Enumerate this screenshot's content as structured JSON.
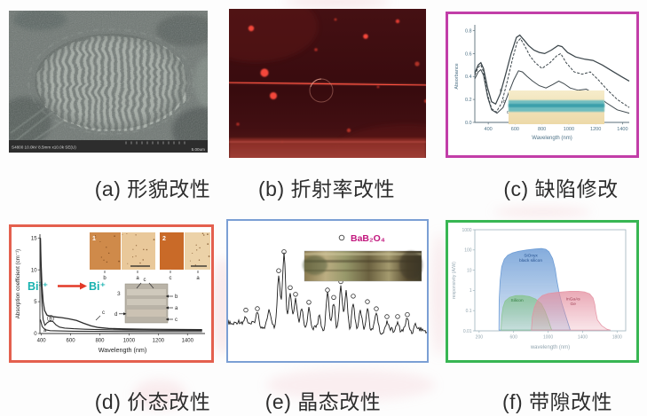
{
  "page": {
    "background": "#fdfdfd"
  },
  "figure": {
    "captions": {
      "a": "(a) 形貌改性",
      "b": "(b) 折射率改性",
      "c": "(c) 缺陷修改",
      "d": "(d) 价态改性",
      "e": "(e) 晶态改性",
      "f": "(f) 带隙改性"
    }
  },
  "panel_a": {
    "status_left": "S4800 10.0kV 8.5mm x10.0k SE(U)",
    "status_right": "5.00um"
  },
  "panel_d": {
    "annotation_from": "Bi³⁺",
    "annotation_to": "Bi⁺",
    "annotation_color": "#18b2b0",
    "arrow_color": "#e23a28",
    "inset1_label": "1",
    "inset2_label": "2",
    "inset3_label": "3",
    "inset1_sub": [
      "b",
      "a"
    ],
    "inset2_sub": [
      "c",
      "a"
    ],
    "inset3_top": "c",
    "inset3_left": "d",
    "inset3_right": [
      "b",
      "a",
      "c"
    ],
    "curve_labels": [
      "a",
      "b",
      "c"
    ]
  },
  "panel_e": {
    "legend_marker": "○",
    "legend_label": "BaB₂O₄",
    "legend_color": "#c2187e"
  },
  "borders": {
    "c": "#c23ea8",
    "d": "#e4604e",
    "e": "#7b9fd4",
    "f": "#38b653"
  },
  "chart_data": [
    {
      "panel": "c",
      "type": "line",
      "xlabel": "Wavelength (nm)",
      "ylabel": "Absorbance",
      "x_range": [
        300,
        1450
      ],
      "y_range": [
        0,
        0.85
      ],
      "x_ticks": [
        400,
        600,
        800,
        1000,
        1200,
        1400
      ],
      "y_ticks": [
        0,
        0.2,
        0.4,
        0.6,
        0.8
      ],
      "curve_labels": [
        "a",
        "b",
        "c"
      ],
      "series": [
        {
          "name": "a",
          "points": [
            [
              300,
              0.43
            ],
            [
              325,
              0.5
            ],
            [
              345,
              0.52
            ],
            [
              365,
              0.47
            ],
            [
              395,
              0.3
            ],
            [
              425,
              0.18
            ],
            [
              455,
              0.16
            ],
            [
              490,
              0.25
            ],
            [
              530,
              0.42
            ],
            [
              570,
              0.6
            ],
            [
              610,
              0.74
            ],
            [
              635,
              0.76
            ],
            [
              665,
              0.72
            ],
            [
              700,
              0.67
            ],
            [
              740,
              0.63
            ],
            [
              780,
              0.61
            ],
            [
              820,
              0.6
            ],
            [
              870,
              0.63
            ],
            [
              920,
              0.67
            ],
            [
              950,
              0.66
            ],
            [
              990,
              0.61
            ],
            [
              1050,
              0.57
            ],
            [
              1120,
              0.55
            ],
            [
              1180,
              0.54
            ],
            [
              1250,
              0.5
            ],
            [
              1320,
              0.45
            ],
            [
              1390,
              0.4
            ],
            [
              1450,
              0.36
            ]
          ]
        },
        {
          "name": "b",
          "dash": "3,1.6",
          "points": [
            [
              300,
              0.41
            ],
            [
              325,
              0.48
            ],
            [
              345,
              0.5
            ],
            [
              365,
              0.44
            ],
            [
              395,
              0.24
            ],
            [
              425,
              0.12
            ],
            [
              460,
              0.09
            ],
            [
              500,
              0.17
            ],
            [
              540,
              0.35
            ],
            [
              580,
              0.55
            ],
            [
              615,
              0.7
            ],
            [
              640,
              0.73
            ],
            [
              670,
              0.67
            ],
            [
              710,
              0.58
            ],
            [
              750,
              0.52
            ],
            [
              800,
              0.47
            ],
            [
              860,
              0.52
            ],
            [
              910,
              0.58
            ],
            [
              940,
              0.6
            ],
            [
              980,
              0.52
            ],
            [
              1040,
              0.44
            ],
            [
              1100,
              0.42
            ],
            [
              1160,
              0.44
            ],
            [
              1220,
              0.37
            ],
            [
              1290,
              0.28
            ],
            [
              1360,
              0.2
            ],
            [
              1450,
              0.13
            ]
          ]
        },
        {
          "name": "c",
          "points": [
            [
              300,
              0.38
            ],
            [
              325,
              0.44
            ],
            [
              345,
              0.46
            ],
            [
              365,
              0.41
            ],
            [
              395,
              0.22
            ],
            [
              425,
              0.11
            ],
            [
              465,
              0.08
            ],
            [
              510,
              0.13
            ],
            [
              550,
              0.25
            ],
            [
              590,
              0.37
            ],
            [
              625,
              0.45
            ],
            [
              655,
              0.44
            ],
            [
              690,
              0.4
            ],
            [
              730,
              0.36
            ],
            [
              780,
              0.32
            ],
            [
              830,
              0.3
            ],
            [
              880,
              0.33
            ],
            [
              925,
              0.36
            ],
            [
              960,
              0.34
            ],
            [
              1010,
              0.3
            ],
            [
              1070,
              0.28
            ],
            [
              1130,
              0.29
            ],
            [
              1200,
              0.24
            ],
            [
              1280,
              0.17
            ],
            [
              1360,
              0.11
            ],
            [
              1450,
              0.08
            ]
          ]
        }
      ]
    },
    {
      "panel": "d",
      "type": "line",
      "xlabel": "Wavelength (nm)",
      "ylabel": "Absorption coefficient (cm⁻¹)",
      "x_range": [
        390,
        1520
      ],
      "y_range": [
        0,
        15.6
      ],
      "x_ticks": [
        400,
        600,
        800,
        1000,
        1200,
        1400
      ],
      "y_ticks": [
        0,
        5,
        10,
        15
      ],
      "series": [
        {
          "name": "c",
          "points": [
            [
              393,
              15
            ],
            [
              398,
              11
            ],
            [
              404,
              7.5
            ],
            [
              412,
              5
            ],
            [
              422,
              3.6
            ],
            [
              438,
              2.9
            ],
            [
              460,
              2.7
            ],
            [
              495,
              2.6
            ],
            [
              540,
              2.5
            ],
            [
              590,
              2.3
            ],
            [
              640,
              2.05
            ],
            [
              690,
              1.6
            ],
            [
              740,
              1.2
            ],
            [
              790,
              0.95
            ],
            [
              860,
              0.8
            ],
            [
              960,
              0.72
            ],
            [
              1100,
              0.68
            ],
            [
              1280,
              0.64
            ],
            [
              1500,
              0.6
            ]
          ]
        },
        {
          "name": "b",
          "points": [
            [
              393,
              15
            ],
            [
              398,
              9
            ],
            [
              404,
              4.5
            ],
            [
              412,
              2.2
            ],
            [
              424,
              1.3
            ],
            [
              440,
              1.7
            ],
            [
              458,
              1.95
            ],
            [
              478,
              1.9
            ],
            [
              500,
              1.35
            ],
            [
              525,
              1.0
            ],
            [
              560,
              0.85
            ],
            [
              620,
              0.75
            ],
            [
              700,
              0.67
            ],
            [
              820,
              0.6
            ],
            [
              1000,
              0.55
            ],
            [
              1250,
              0.52
            ],
            [
              1500,
              0.5
            ]
          ]
        },
        {
          "name": "a",
          "points": [
            [
              393,
              2.2
            ],
            [
              405,
              1.1
            ],
            [
              425,
              0.6
            ],
            [
              460,
              0.45
            ],
            [
              520,
              0.4
            ],
            [
              620,
              0.36
            ],
            [
              800,
              0.33
            ],
            [
              1100,
              0.31
            ],
            [
              1500,
              0.3
            ]
          ]
        }
      ]
    },
    {
      "panel": "e",
      "type": "line",
      "legend": "BaB₂O₄",
      "peaks": [
        [
          20,
          10,
          1
        ],
        [
          33,
          13,
          1
        ],
        [
          46,
          16,
          0
        ],
        [
          57,
          58,
          1
        ],
        [
          63,
          80,
          1
        ],
        [
          70,
          40,
          1
        ],
        [
          76,
          33,
          1
        ],
        [
          83,
          20,
          0
        ],
        [
          91,
          25,
          1
        ],
        [
          103,
          16,
          0
        ],
        [
          112,
          40,
          1
        ],
        [
          119,
          32,
          1
        ],
        [
          127,
          50,
          1
        ],
        [
          133,
          42,
          0
        ],
        [
          141,
          34,
          1
        ],
        [
          149,
          22,
          0
        ],
        [
          157,
          28,
          1
        ],
        [
          167,
          20,
          1
        ],
        [
          179,
          11,
          1
        ],
        [
          191,
          11,
          1
        ],
        [
          202,
          13,
          1
        ],
        [
          211,
          8,
          0
        ]
      ]
    },
    {
      "panel": "f",
      "type": "area",
      "xlabel": "wavelength (nm)",
      "ylabel": "responsivity (A/W)",
      "x_range": [
        150,
        1900
      ],
      "y_range": [
        0.01,
        1000
      ],
      "log_y": true,
      "x_ticks": [
        200,
        600,
        1000,
        1400,
        1800
      ],
      "y_ticks": [
        0.01,
        0.1,
        1,
        10,
        100,
        1000
      ],
      "regions": [
        {
          "name": "SiOnyx black silicon",
          "label_lines": [
            "SiOnyx",
            "black silicon"
          ],
          "color": "#5f93d2",
          "label_color": "#24508e",
          "label_x": 800,
          "label_y": 45,
          "points": [
            [
              430,
              0.011
            ],
            [
              432,
              0.3
            ],
            [
              443,
              3
            ],
            [
              462,
              15
            ],
            [
              492,
              35
            ],
            [
              532,
              55
            ],
            [
              582,
              70
            ],
            [
              652,
              85
            ],
            [
              752,
              100
            ],
            [
              852,
              112
            ],
            [
              922,
              118
            ],
            [
              972,
              108
            ],
            [
              1012,
              80
            ],
            [
              1052,
              38
            ],
            [
              1082,
              12
            ],
            [
              1102,
              3
            ],
            [
              1127,
              0.8
            ],
            [
              1157,
              0.25
            ],
            [
              1197,
              0.07
            ],
            [
              1237,
              0.02
            ],
            [
              1257,
              0.011
            ]
          ]
        },
        {
          "name": "Silicon",
          "label_lines": [
            "Silicon"
          ],
          "color": "#86c48c",
          "label_color": "#2f7a3c",
          "label_x": 640,
          "label_y": 0.28,
          "points": [
            [
              455,
              0.011
            ],
            [
              462,
              0.05
            ],
            [
              477,
              0.15
            ],
            [
              502,
              0.3
            ],
            [
              552,
              0.45
            ],
            [
              622,
              0.55
            ],
            [
              702,
              0.56
            ],
            [
              782,
              0.5
            ],
            [
              852,
              0.38
            ],
            [
              922,
              0.22
            ],
            [
              962,
              0.1
            ],
            [
              1002,
              0.035
            ],
            [
              1032,
              0.014
            ],
            [
              1042,
              0.011
            ]
          ]
        },
        {
          "name": "InGaAs Ge",
          "label_lines": [
            "InGaAs",
            "Ge"
          ],
          "color": "#e48fa0",
          "label_color": "#a04055",
          "label_x": 1290,
          "label_y": 0.33,
          "points": [
            [
              807,
              0.011
            ],
            [
              817,
              0.05
            ],
            [
              842,
              0.15
            ],
            [
              882,
              0.35
            ],
            [
              932,
              0.55
            ],
            [
              1002,
              0.7
            ],
            [
              1102,
              0.8
            ],
            [
              1252,
              0.9
            ],
            [
              1352,
              0.9
            ],
            [
              1422,
              0.84
            ],
            [
              1482,
              0.68
            ],
            [
              1522,
              0.42
            ],
            [
              1542,
              0.2
            ],
            [
              1552,
              0.09
            ],
            [
              1572,
              0.035
            ],
            [
              1622,
              0.018
            ],
            [
              1682,
              0.012
            ],
            [
              1722,
              0.011
            ]
          ]
        }
      ]
    }
  ]
}
